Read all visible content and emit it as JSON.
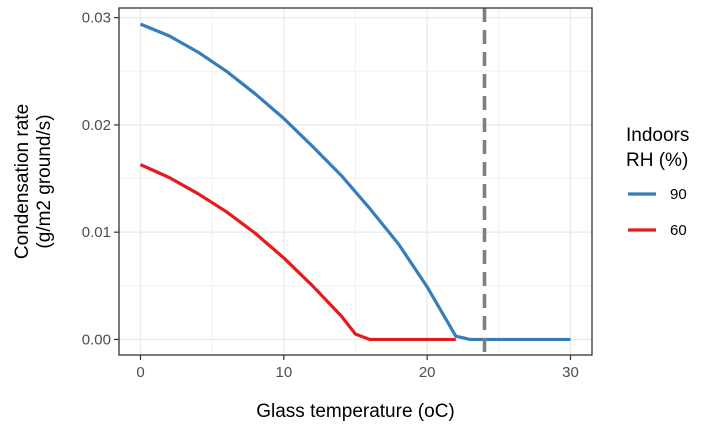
{
  "chart_data": {
    "type": "line",
    "xlabel": "Glass temperature (oC)",
    "ylabel_lines": [
      "Condensation rate",
      "(g/m2 ground/s)"
    ],
    "xlim": [
      -1.5,
      31.5
    ],
    "ylim": [
      -0.00145,
      0.0309
    ],
    "x_ticks": [
      0,
      10,
      20,
      30
    ],
    "x_tick_labels": [
      "0",
      "10",
      "20",
      "30"
    ],
    "x_minor_ticks": [
      5,
      15,
      25
    ],
    "y_ticks": [
      0.0,
      0.01,
      0.02,
      0.03
    ],
    "y_tick_labels": [
      "0.00",
      "0.01",
      "0.02",
      "0.03"
    ],
    "y_minor_ticks": [
      0.005,
      0.015,
      0.025
    ],
    "grid": true,
    "vline": {
      "x": 24,
      "style": "dashed",
      "color": "#7f7f7f"
    },
    "legend": {
      "title_lines": [
        "Indoors",
        "RH (%)"
      ],
      "position": "right"
    },
    "series": [
      {
        "name": "90",
        "color": "#377eb8",
        "x": [
          0,
          2,
          4,
          6,
          8,
          10,
          12,
          14,
          16,
          18,
          20,
          21,
          22,
          23,
          24,
          26,
          28,
          30
        ],
        "y": [
          0.0294,
          0.0283,
          0.0268,
          0.025,
          0.0229,
          0.0206,
          0.018,
          0.0153,
          0.0122,
          0.0089,
          0.0049,
          0.0026,
          0.0003,
          0.0,
          0.0,
          0.0,
          0.0,
          0.0
        ]
      },
      {
        "name": "60",
        "color": "#e41a1c",
        "x": [
          0,
          2,
          4,
          6,
          8,
          10,
          12,
          14,
          15,
          16,
          18,
          20,
          22
        ],
        "y": [
          0.0163,
          0.0151,
          0.0136,
          0.0119,
          0.0099,
          0.0076,
          0.005,
          0.0022,
          0.0005,
          0.0,
          0.0,
          0.0,
          0.0
        ]
      }
    ]
  }
}
